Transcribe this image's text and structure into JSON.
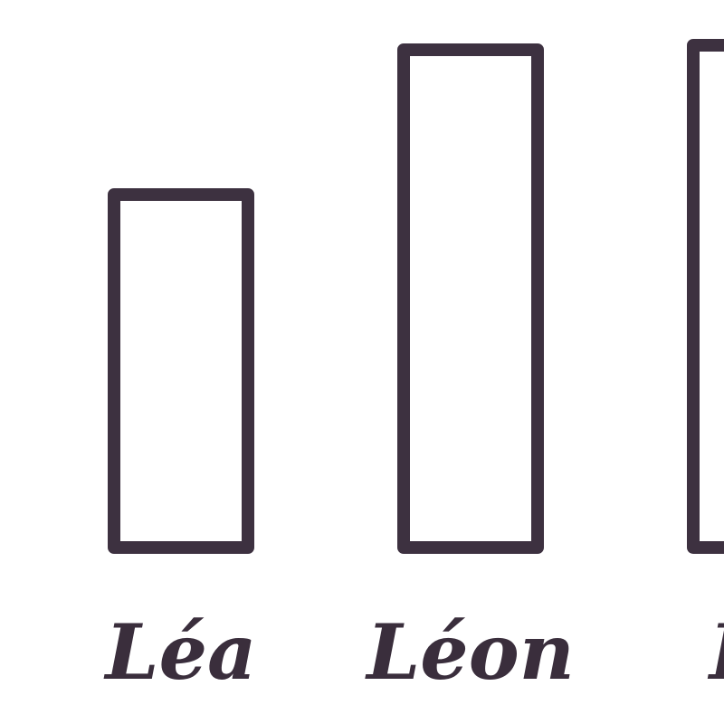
{
  "chart_data": {
    "type": "bar",
    "categories": [
      "Léa",
      "Léon",
      "Lé"
    ],
    "values": [
      390,
      550,
      555
    ],
    "color": "#3d3140",
    "ylim": [
      0,
      600
    ]
  }
}
